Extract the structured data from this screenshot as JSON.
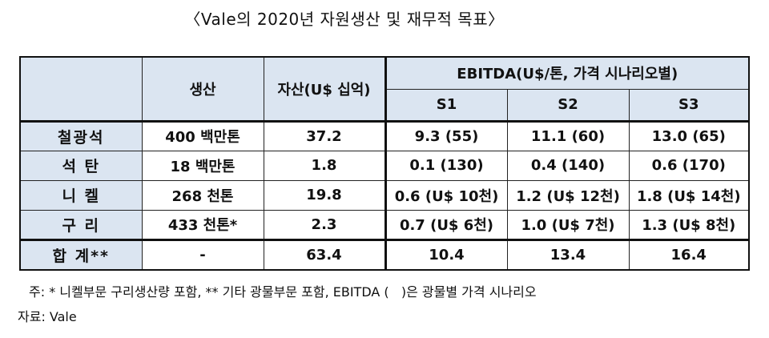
{
  "title": "〈Vale의 2020년 자원생산 및 재무적 목표〉",
  "table": {
    "headers": {
      "production": "생산",
      "assets": "자산(U$ 십억)",
      "ebitda": "EBITDA(U$/톤, 가격 시나리오별)",
      "s1": "S1",
      "s2": "S2",
      "s3": "S3"
    },
    "rows": [
      {
        "label": "철광석",
        "production": "400 백만톤",
        "assets": "37.2",
        "s1": "9.3 (55)",
        "s2": "11.1 (60)",
        "s3": "13.0 (65)"
      },
      {
        "label": "석 탄",
        "production": "18 백만톤",
        "assets": "1.8",
        "s1": "0.1 (130)",
        "s2": "0.4 (140)",
        "s3": "0.6 (170)"
      },
      {
        "label": "니 켈",
        "production": "268 천톤",
        "assets": "19.8",
        "s1": "0.6 (U$ 10천)",
        "s2": "1.2 (U$ 12천)",
        "s3": "1.8 (U$ 14천)"
      },
      {
        "label": "구 리",
        "production": "433 천톤*",
        "assets": "2.3",
        "s1": "0.7 (U$ 6천)",
        "s2": "1.0 (U$ 7천)",
        "s3": "1.3 (U$ 8천)"
      },
      {
        "label": "합 계**",
        "production": "-",
        "assets": "63.4",
        "s1": "10.4",
        "s2": "13.4",
        "s3": "16.4"
      }
    ]
  },
  "note": "주: * 니켈부문 구리생산량 포함, ** 기타 광물부문 포함, EBITDA (   )은 광물별 가격 시나리오",
  "source": "자료: Vale"
}
